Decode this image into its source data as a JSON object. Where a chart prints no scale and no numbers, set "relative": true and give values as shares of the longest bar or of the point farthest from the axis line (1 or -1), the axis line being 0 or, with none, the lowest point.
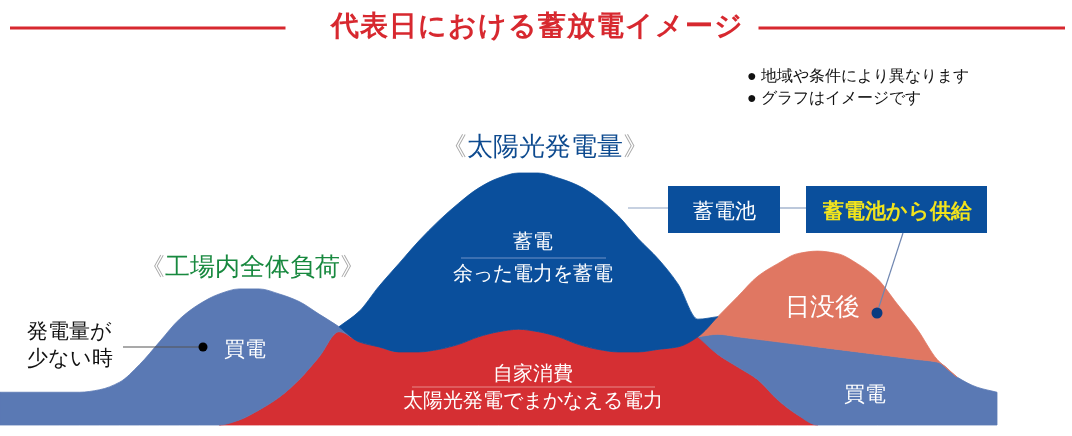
{
  "chart_data": {
    "type": "area",
    "stacked": true,
    "relative": true,
    "title": "代表日における蓄放電イメージ",
    "categories": [
      null,
      null,
      null,
      null,
      null,
      null,
      null,
      null,
      null,
      null,
      null,
      null,
      null,
      null,
      null,
      null,
      null,
      null,
      null,
      null,
      null,
      null,
      null,
      null,
      null,
      null,
      null,
      null,
      null,
      null,
      null,
      null,
      null,
      null,
      null,
      null,
      null,
      null,
      null,
      null,
      null,
      null,
      null,
      null,
      null,
      null,
      null,
      null,
      null,
      null,
      null
    ],
    "series": [
      {
        "name": "自家消費",
        "color": "#d52f33",
        "values": [
          null,
          null,
          null,
          null,
          null,
          null,
          null,
          null,
          null,
          null,
          null,
          0,
          0.02,
          0.06,
          0.11,
          0.18,
          0.27,
          0.37,
          0.33,
          0.31,
          0.29,
          0.29,
          0.3,
          0.32,
          0.35,
          0.37,
          0.38,
          0.37,
          0.35,
          0.32,
          0.3,
          0.29,
          0.29,
          0.3,
          0.31,
          0.35,
          0.28,
          0.23,
          0.18,
          0.1,
          0.04,
          0,
          null,
          null,
          null,
          null,
          null,
          null,
          null,
          null,
          null
        ]
      },
      {
        "name": "買電",
        "color": "#5a79b4",
        "values": [
          0.13,
          0.13,
          0.13,
          0.13,
          0.13,
          0.14,
          0.17,
          0.24,
          0.33,
          0.42,
          0.48,
          0.52,
          0.52,
          0.48,
          0.41,
          0.31,
          0.17,
          0.02,
          0,
          null,
          null,
          null,
          null,
          null,
          null,
          null,
          null,
          null,
          null,
          null,
          null,
          null,
          null,
          null,
          null,
          0,
          0.08,
          0.12,
          0.16,
          0.23,
          0.28,
          0.31,
          0.3,
          0.29,
          0.28,
          0.27,
          0.26,
          0.25,
          0.19,
          0.15,
          0.13
        ]
      },
      {
        "name": "日没後",
        "color": "#e07762",
        "values": [
          null,
          null,
          null,
          null,
          null,
          null,
          null,
          null,
          null,
          null,
          null,
          null,
          null,
          null,
          null,
          null,
          null,
          null,
          null,
          null,
          null,
          null,
          null,
          null,
          null,
          null,
          null,
          null,
          null,
          null,
          null,
          null,
          null,
          null,
          null,
          0,
          0.07,
          0.16,
          0.25,
          0.31,
          0.36,
          0.38,
          0.38,
          0.35,
          0.3,
          0.21,
          0.12,
          0.01,
          0,
          null,
          null
        ]
      },
      {
        "name": "蓄電",
        "color": "#0a4f9c",
        "values": [
          null,
          null,
          null,
          null,
          null,
          null,
          null,
          null,
          null,
          null,
          null,
          null,
          null,
          null,
          null,
          null,
          null,
          0,
          0.12,
          0.24,
          0.35,
          0.44,
          0.51,
          0.56,
          0.59,
          0.61,
          0.62,
          0.63,
          0.63,
          0.63,
          0.6,
          0.54,
          0.45,
          0.36,
          0.25,
          0.07,
          0,
          null,
          null,
          null,
          null,
          null,
          null,
          null,
          null,
          null,
          null,
          null,
          null,
          null,
          null
        ]
      }
    ],
    "annotations": [
      "● 地域や条件により異なります",
      "● グラフはイメージです",
      "《太陽光発電量》",
      "《工場内全体負荷》",
      "余った電力を蓄電",
      "太陽光発電でまかなえる電力",
      "発電量が少ない時",
      "蓄電池",
      "蓄電池から供給"
    ]
  }
}
